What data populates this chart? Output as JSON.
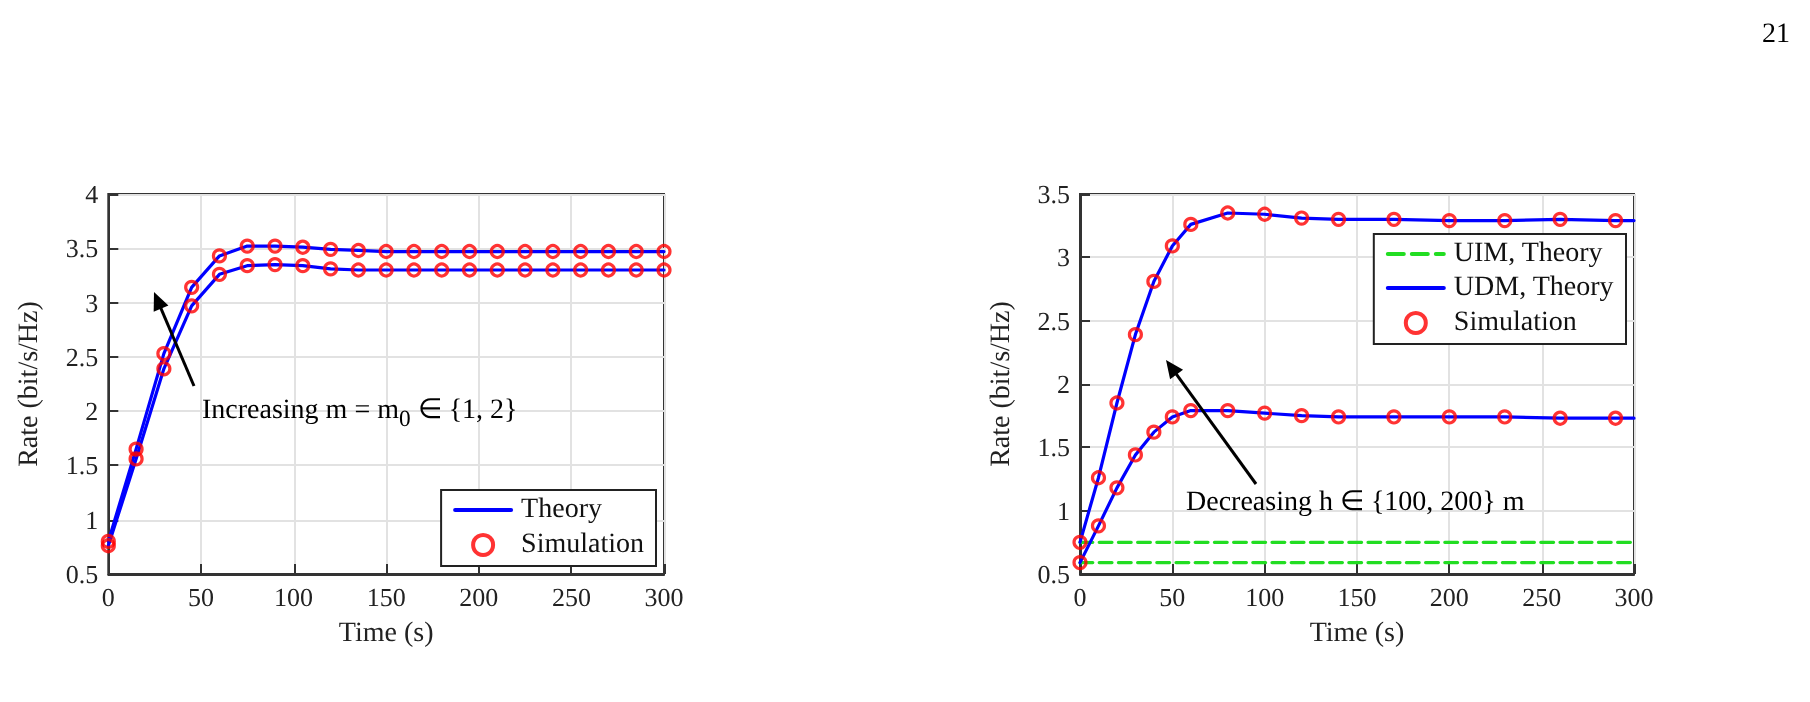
{
  "chart_data": [
    {
      "type": "line",
      "xlabel": "Time (s)",
      "ylabel": "Rate (bit/s/Hz)",
      "xlim": [
        0,
        300
      ],
      "xticks": [
        0,
        50,
        100,
        150,
        200,
        250,
        300
      ],
      "ylim": [
        0.5,
        4
      ],
      "yticks": [
        0.5,
        1,
        1.5,
        2,
        2.5,
        3,
        3.5,
        4
      ],
      "grid": true,
      "legend": "bottom right",
      "x": [
        0,
        15,
        30,
        45,
        60,
        75,
        90,
        105,
        120,
        135,
        150,
        165,
        180,
        195,
        210,
        225,
        240,
        255,
        270,
        285,
        300
      ],
      "series": [
        {
          "name": "Theory",
          "type": "line",
          "color": "#0000ff",
          "marker": "none",
          "line_style": "solid",
          "values": [
            0.8,
            1.65,
            2.53,
            3.14,
            3.43,
            3.52,
            3.52,
            3.51,
            3.49,
            3.48,
            3.47,
            3.47,
            3.47,
            3.47,
            3.47,
            3.47,
            3.47,
            3.47,
            3.47,
            3.47,
            3.47
          ]
        },
        {
          "type": "line",
          "color": "#0000ff",
          "marker": "none",
          "line_style": "solid",
          "values": [
            0.76,
            1.56,
            2.39,
            2.97,
            3.26,
            3.34,
            3.35,
            3.34,
            3.31,
            3.3,
            3.3,
            3.3,
            3.3,
            3.3,
            3.3,
            3.3,
            3.3,
            3.3,
            3.3,
            3.3,
            3.3
          ]
        },
        {
          "name": "Simulation",
          "type": "scatter",
          "color": "#ff0000",
          "marker": "circle",
          "values": [
            0.8,
            1.65,
            2.53,
            3.14,
            3.43,
            3.52,
            3.52,
            3.51,
            3.49,
            3.48,
            3.47,
            3.47,
            3.47,
            3.47,
            3.47,
            3.47,
            3.47,
            3.47,
            3.47,
            3.47,
            3.47
          ]
        },
        {
          "type": "scatter",
          "color": "#ff0000",
          "marker": "circle",
          "values": [
            0.76,
            1.56,
            2.39,
            2.97,
            3.26,
            3.34,
            3.35,
            3.34,
            3.31,
            3.3,
            3.3,
            3.3,
            3.3,
            3.3,
            3.3,
            3.3,
            3.3,
            3.3,
            3.3,
            3.3,
            3.3
          ]
        }
      ],
      "annotations": [
        "Increasing m = m$_{0}$ ∈ {1, 2}"
      ]
    },
    {
      "type": "line",
      "xlabel": "Time (s)",
      "ylabel": "Rate (bit/s/Hz)",
      "xlim": [
        0,
        300
      ],
      "xticks": [
        0,
        50,
        100,
        150,
        200,
        250,
        300
      ],
      "ylim": [
        0.5,
        3.5
      ],
      "yticks": [
        0.5,
        1,
        1.5,
        2,
        2.5,
        3,
        3.5
      ],
      "grid": true,
      "legend": "top right",
      "x": [
        0,
        10,
        20,
        30,
        40,
        50,
        60,
        80,
        100,
        120,
        140,
        170,
        200,
        230,
        260,
        290
      ],
      "series": [
        {
          "name": "UIM, Theory",
          "type": "line",
          "color": "#22dd22",
          "marker": "none",
          "line_style": "dashed",
          "x": [
            0,
            300
          ],
          "values": [
            0.75,
            0.75
          ]
        },
        {
          "type": "line",
          "color": "#22dd22",
          "marker": "none",
          "line_style": "dashed",
          "x": [
            0,
            300
          ],
          "values": [
            0.59,
            0.59
          ]
        },
        {
          "name": "UDM, Theory",
          "type": "line",
          "color": "#0000ff",
          "marker": "none",
          "line_style": "solid",
          "x": [
            0,
            10,
            20,
            30,
            40,
            50,
            60,
            80,
            100,
            120,
            140,
            170,
            200,
            230,
            260,
            290,
            300
          ],
          "values": [
            0.75,
            1.26,
            1.85,
            2.39,
            2.81,
            3.09,
            3.26,
            3.35,
            3.34,
            3.31,
            3.3,
            3.3,
            3.29,
            3.29,
            3.3,
            3.29,
            3.29
          ]
        },
        {
          "type": "line",
          "color": "#0000ff",
          "marker": "none",
          "line_style": "solid",
          "x": [
            0,
            10,
            20,
            30,
            40,
            50,
            60,
            80,
            100,
            120,
            140,
            170,
            200,
            230,
            260,
            290,
            300
          ],
          "values": [
            0.59,
            0.88,
            1.18,
            1.44,
            1.62,
            1.74,
            1.79,
            1.79,
            1.77,
            1.75,
            1.74,
            1.74,
            1.74,
            1.74,
            1.73,
            1.73,
            1.73
          ]
        },
        {
          "name": "Simulation",
          "type": "scatter",
          "color": "#ff0000",
          "marker": "circle",
          "values": [
            0.75,
            1.26,
            1.85,
            2.39,
            2.81,
            3.09,
            3.26,
            3.35,
            3.34,
            3.31,
            3.3,
            3.3,
            3.29,
            3.29,
            3.3,
            3.29
          ]
        },
        {
          "type": "scatter",
          "color": "#ff0000",
          "marker": "circle",
          "values": [
            0.59,
            0.88,
            1.18,
            1.44,
            1.62,
            1.74,
            1.79,
            1.79,
            1.77,
            1.75,
            1.74,
            1.74,
            1.74,
            1.74,
            1.73,
            1.73
          ]
        }
      ],
      "annotations": [
        "Decreasing h ∈ {100, 200} m",
        "21"
      ]
    }
  ]
}
